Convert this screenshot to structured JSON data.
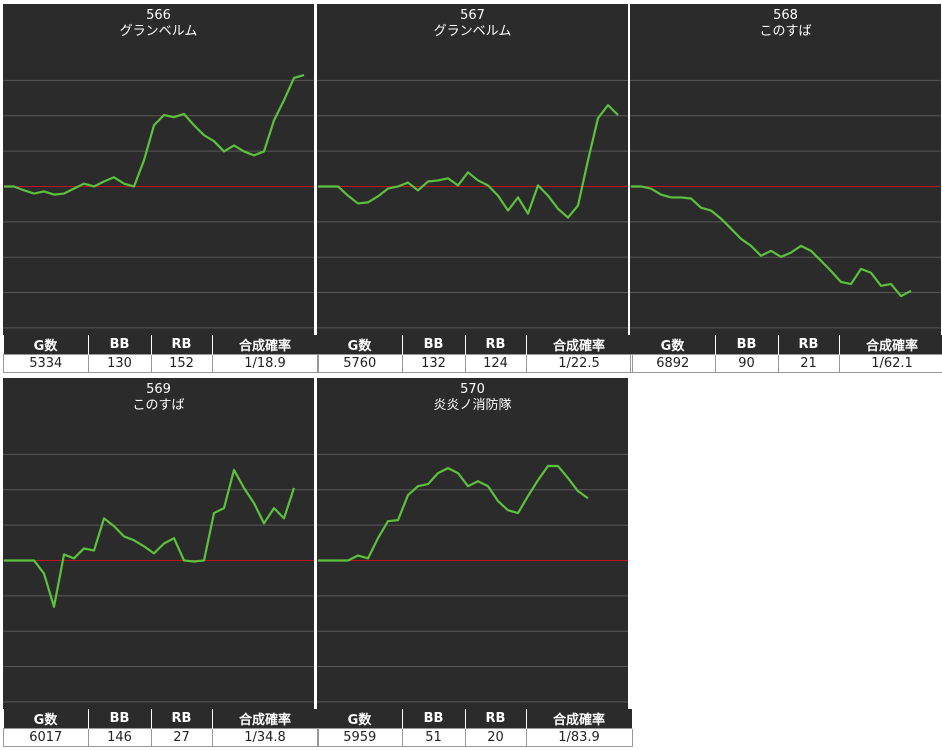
{
  "chart_data": [
    {
      "type": "line",
      "title": "566",
      "subtitle": "グランベルム",
      "color": "#5cc13c",
      "zero_line_color": "#c0141e",
      "grid": true,
      "ylim": [
        -4200,
        4000
      ],
      "yticks": [
        -4000,
        -3000,
        -2000,
        -1000,
        0,
        1000,
        2000,
        3000
      ],
      "values": [
        0,
        0,
        -110,
        -200,
        -140,
        -230,
        -200,
        -60,
        80,
        0,
        140,
        260,
        80,
        0,
        740,
        1730,
        2020,
        1960,
        2050,
        1730,
        1450,
        1280,
        990,
        1160,
        990,
        880,
        990,
        1870,
        2440,
        3070,
        3150
      ],
      "table": {
        "columns": [
          "G数",
          "BB",
          "RB",
          "合成確率"
        ],
        "row": [
          5334,
          130,
          152,
          "1/18.9"
        ]
      }
    },
    {
      "type": "line",
      "title": "567",
      "subtitle": "グランベルム",
      "color": "#5cc13c",
      "zero_line_color": "#c0141e",
      "grid": true,
      "ylim": [
        -4200,
        4000
      ],
      "yticks": [
        -4000,
        -3000,
        -2000,
        -1000,
        0,
        1000,
        2000,
        3000
      ],
      "values": [
        0,
        0,
        0,
        -260,
        -480,
        -450,
        -280,
        -60,
        0,
        110,
        -110,
        140,
        170,
        230,
        30,
        400,
        170,
        30,
        -260,
        -680,
        -310,
        -770,
        30,
        -260,
        -630,
        -880,
        -540,
        740,
        1930,
        2300,
        2020
      ],
      "table": {
        "columns": [
          "G数",
          "BB",
          "RB",
          "合成確率"
        ],
        "row": [
          5760,
          132,
          124,
          "1/22.5"
        ]
      }
    },
    {
      "type": "line",
      "title": "568",
      "subtitle": "このすば",
      "color": "#5cc13c",
      "zero_line_color": "#c0141e",
      "grid": true,
      "ylim": [
        -4200,
        4000
      ],
      "yticks": [
        -4000,
        -3000,
        -2000,
        -1000,
        0,
        1000,
        2000,
        3000
      ],
      "values": [
        0,
        0,
        -60,
        -230,
        -310,
        -310,
        -340,
        -600,
        -680,
        -910,
        -1190,
        -1480,
        -1680,
        -1960,
        -1820,
        -1990,
        -1870,
        -1680,
        -1820,
        -2100,
        -2390,
        -2700,
        -2760,
        -2330,
        -2440,
        -2810,
        -2760,
        -3100,
        -2950
      ],
      "table": {
        "columns": [
          "G数",
          "BB",
          "RB",
          "合成確率"
        ],
        "row": [
          6892,
          90,
          21,
          "1/62.1"
        ]
      }
    },
    {
      "type": "line",
      "title": "569",
      "subtitle": "このすば",
      "color": "#5cc13c",
      "zero_line_color": "#c0141e",
      "grid": true,
      "ylim": [
        -4200,
        4000
      ],
      "yticks": [
        -4000,
        -3000,
        -2000,
        -1000,
        0,
        1000,
        2000,
        3000
      ],
      "values": [
        0,
        0,
        0,
        0,
        -370,
        -1310,
        170,
        60,
        340,
        280,
        1190,
        970,
        680,
        570,
        400,
        200,
        480,
        630,
        0,
        -30,
        0,
        1340,
        1480,
        2560,
        2050,
        1620,
        1050,
        1480,
        1190,
        2050
      ],
      "table": {
        "columns": [
          "G数",
          "BB",
          "RB",
          "合成確率"
        ],
        "row": [
          6017,
          146,
          27,
          "1/34.8"
        ]
      }
    },
    {
      "type": "line",
      "title": "570",
      "subtitle": "炎炎ノ消防隊",
      "color": "#5cc13c",
      "zero_line_color": "#c0141e",
      "grid": true,
      "ylim": [
        -4200,
        4000
      ],
      "yticks": [
        -4000,
        -3000,
        -2000,
        -1000,
        0,
        1000,
        2000,
        3000
      ],
      "values": [
        0,
        0,
        0,
        0,
        140,
        60,
        630,
        1110,
        1140,
        1850,
        2100,
        2160,
        2470,
        2610,
        2470,
        2100,
        2240,
        2100,
        1680,
        1420,
        1340,
        1820,
        2270,
        2670,
        2670,
        2330,
        1960,
        1760
      ],
      "table": {
        "columns": [
          "G数",
          "BB",
          "RB",
          "合成確率"
        ],
        "row": [
          5959,
          51,
          20,
          "1/83.9"
        ]
      }
    }
  ]
}
